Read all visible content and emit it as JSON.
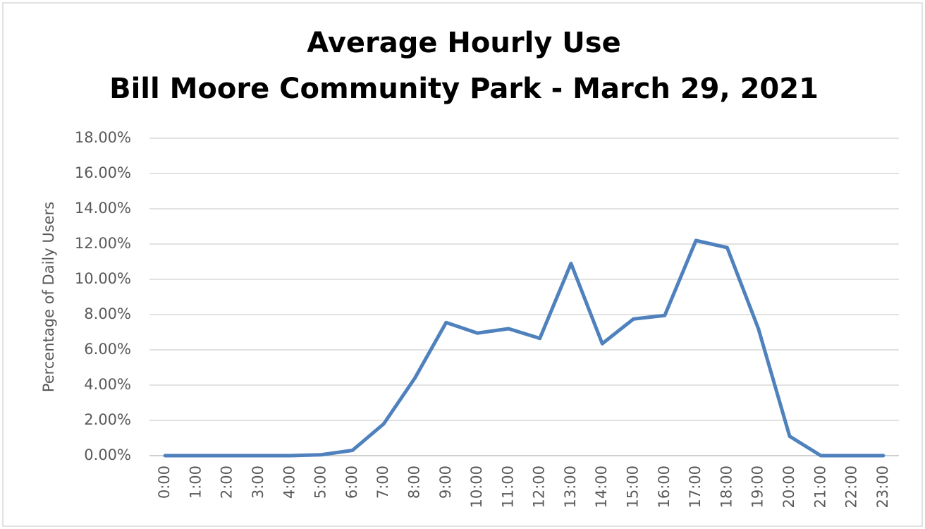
{
  "chart_data": {
    "type": "line",
    "title": [
      "Average Hourly Use",
      "Bill Moore Community Park - March 29, 2021"
    ],
    "y_label": "Percentage of Daily Users",
    "categories": [
      "0:00",
      "1:00",
      "2:00",
      "3:00",
      "4:00",
      "5:00",
      "6:00",
      "7:00",
      "8:00",
      "9:00",
      "10:00",
      "11:00",
      "12:00",
      "13:00",
      "14:00",
      "15:00",
      "16:00",
      "17:00",
      "18:00",
      "19:00",
      "20:00",
      "21:00",
      "22:00",
      "23:00"
    ],
    "series": [
      {
        "name": "Percentage of Daily Users",
        "color": "#4f81bd",
        "values": [
          0,
          0,
          0,
          0,
          0,
          0.05,
          0.3,
          1.8,
          4.4,
          7.55,
          6.95,
          7.2,
          6.65,
          10.9,
          6.35,
          7.75,
          7.95,
          12.2,
          11.8,
          7.2,
          1.1,
          0,
          0,
          0
        ]
      }
    ],
    "ylim": [
      0,
      18
    ],
    "yticks": [
      {
        "value": 0,
        "label": "0.00%"
      },
      {
        "value": 2,
        "label": "2.00%"
      },
      {
        "value": 4,
        "label": "4.00%"
      },
      {
        "value": 6,
        "label": "6.00%"
      },
      {
        "value": 8,
        "label": "8.00%"
      },
      {
        "value": 10,
        "label": "10.00%"
      },
      {
        "value": 12,
        "label": "12.00%"
      },
      {
        "value": 14,
        "label": "14.00%"
      },
      {
        "value": 16,
        "label": "16.00%"
      },
      {
        "value": 18,
        "label": "18.00%"
      }
    ],
    "grid": true
  }
}
